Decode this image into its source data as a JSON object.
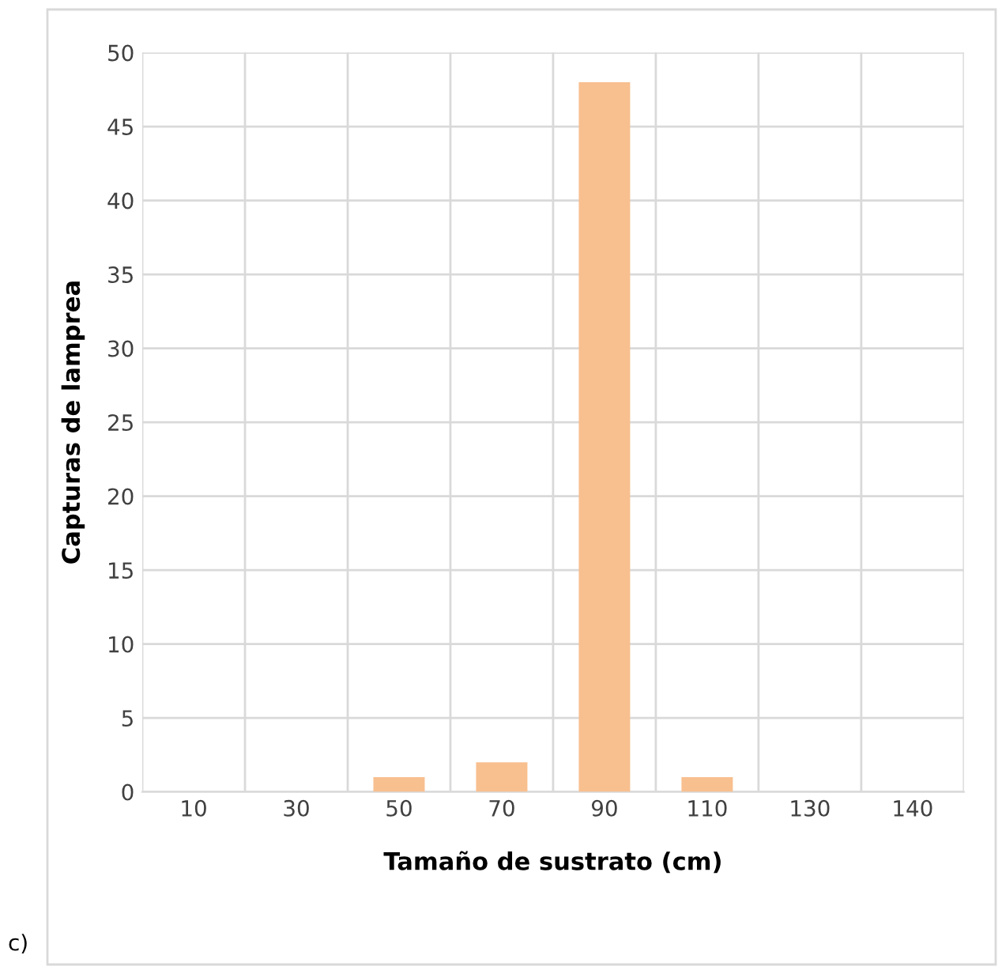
{
  "chart_data": {
    "type": "bar",
    "xlabel": "Tamaño de sustrato (cm)",
    "ylabel": "Capturas de lamprea",
    "categories": [
      "10",
      "30",
      "50",
      "70",
      "90",
      "110",
      "130",
      "140"
    ],
    "values": [
      0,
      0,
      1,
      2,
      48,
      1,
      0,
      0
    ],
    "color": "#f8bf8f",
    "ylim": [
      0,
      50
    ],
    "yticks": [
      0,
      5,
      10,
      15,
      20,
      25,
      30,
      35,
      40,
      45,
      50
    ],
    "grid": true,
    "annotations": [
      "c)"
    ]
  }
}
